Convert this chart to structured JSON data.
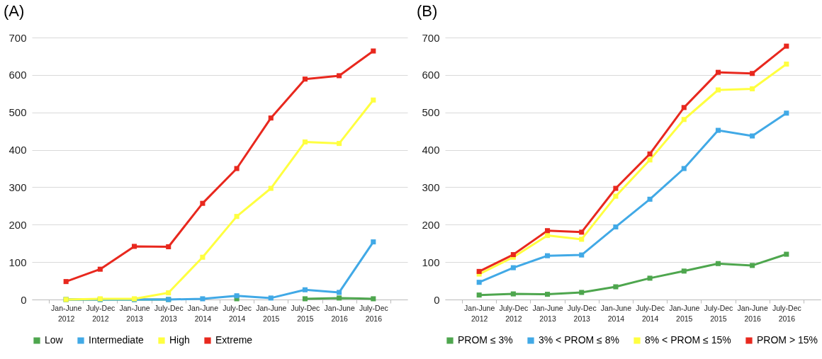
{
  "chart_data": [
    {
      "type": "line",
      "title": "(A)",
      "categories": [
        "Jan-June 2012",
        "July-Dec 2012",
        "Jan-June 2013",
        "July-Dec 2013",
        "Jan-June 2014",
        "July-Dec 2014",
        "Jan-June 2015",
        "July-Dec 2015",
        "Jan-June 2016",
        "July-Dec 2016"
      ],
      "ylim": [
        0,
        700
      ],
      "yticks": [
        0,
        100,
        200,
        300,
        400,
        500,
        600,
        700
      ],
      "grid": "y",
      "legend": "bottom",
      "marker": "square",
      "series": [
        {
          "name": "Low",
          "color": "#4ea64e",
          "values": [
            0,
            0,
            0,
            0,
            null,
            2,
            null,
            2,
            4,
            2
          ]
        },
        {
          "name": "Intermediate",
          "color": "#41a9e6",
          "values": [
            0,
            0,
            0,
            0,
            2,
            10,
            4,
            26,
            19,
            154
          ]
        },
        {
          "name": "High",
          "color": "#ffff40",
          "values": [
            0,
            2,
            2,
            18,
            113,
            222,
            297,
            421,
            417,
            533
          ]
        },
        {
          "name": "Extreme",
          "color": "#e8281e",
          "values": [
            48,
            81,
            142,
            141,
            257,
            350,
            485,
            589,
            598,
            664
          ]
        }
      ]
    },
    {
      "type": "line",
      "title": "(B)",
      "categories": [
        "Jan-June 2012",
        "July-Dec 2012",
        "Jan-June 2013",
        "July-Dec 2013",
        "Jan-June 2014",
        "July-Dec 2014",
        "Jan-June 2015",
        "July-Dec 2015",
        "Jan-June 2016",
        "July-Dec 2016"
      ],
      "ylim": [
        0,
        700
      ],
      "yticks": [
        0,
        100,
        200,
        300,
        400,
        500,
        600,
        700
      ],
      "grid": "y",
      "legend": "bottom",
      "marker": "square",
      "series": [
        {
          "name": "PROM ≤ 3%",
          "color": "#4ea64e",
          "values": [
            12,
            15,
            14,
            19,
            34,
            57,
            76,
            96,
            91,
            121
          ]
        },
        {
          "name": "3% < PROM ≤ 8%",
          "color": "#41a9e6",
          "values": [
            46,
            85,
            117,
            119,
            194,
            268,
            350,
            452,
            437,
            498
          ]
        },
        {
          "name": "8% < PROM ≤ 15%",
          "color": "#ffff40",
          "values": [
            68,
            113,
            171,
            161,
            276,
            373,
            481,
            560,
            563,
            629
          ]
        },
        {
          "name": "PROM > 15%",
          "color": "#e8281e",
          "values": [
            75,
            120,
            184,
            180,
            297,
            389,
            513,
            607,
            604,
            677
          ]
        }
      ]
    }
  ]
}
